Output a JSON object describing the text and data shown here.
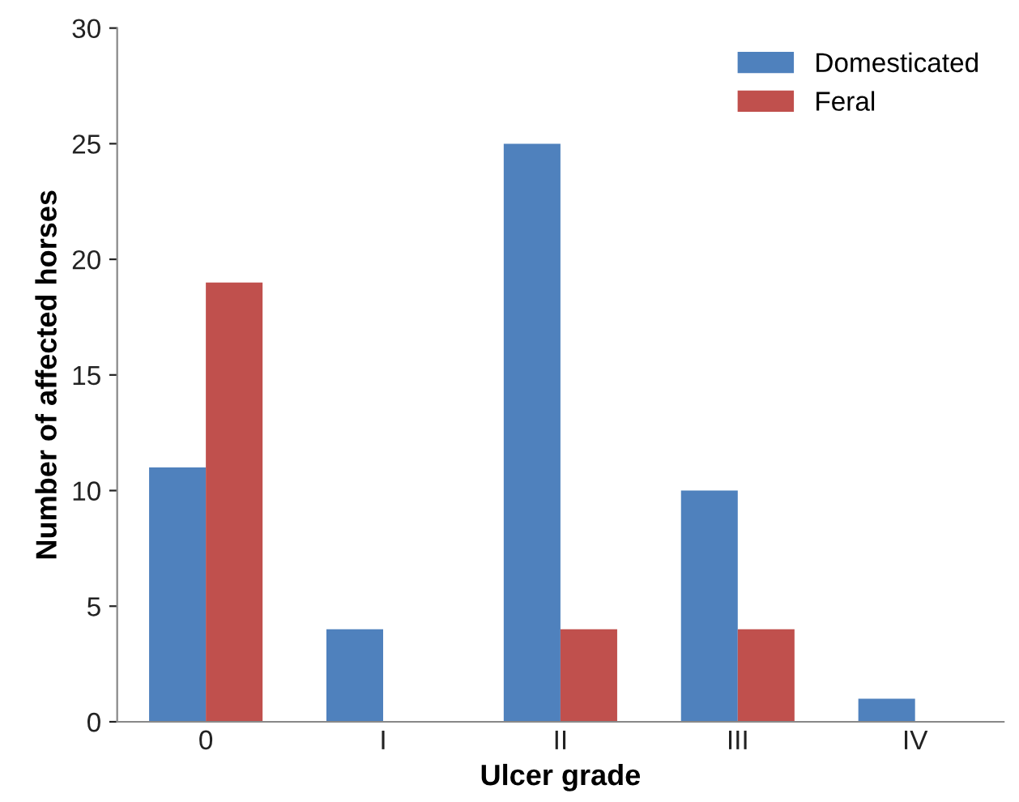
{
  "chart_data": {
    "type": "bar",
    "xlabel": "Ulcer grade",
    "ylabel": "Number of affected horses",
    "categories": [
      "0",
      "I",
      "II",
      "III",
      "IV"
    ],
    "series": [
      {
        "name": "Domesticated",
        "color": "#4f81bd",
        "values": [
          11,
          4,
          25,
          10,
          1
        ]
      },
      {
        "name": "Feral",
        "color": "#c0504d",
        "values": [
          19,
          null,
          4,
          4,
          null
        ]
      }
    ],
    "ylim": [
      0,
      30
    ],
    "yticks": [
      0,
      5,
      10,
      15,
      20,
      25,
      30
    ],
    "grid": false,
    "legend": "top right"
  }
}
